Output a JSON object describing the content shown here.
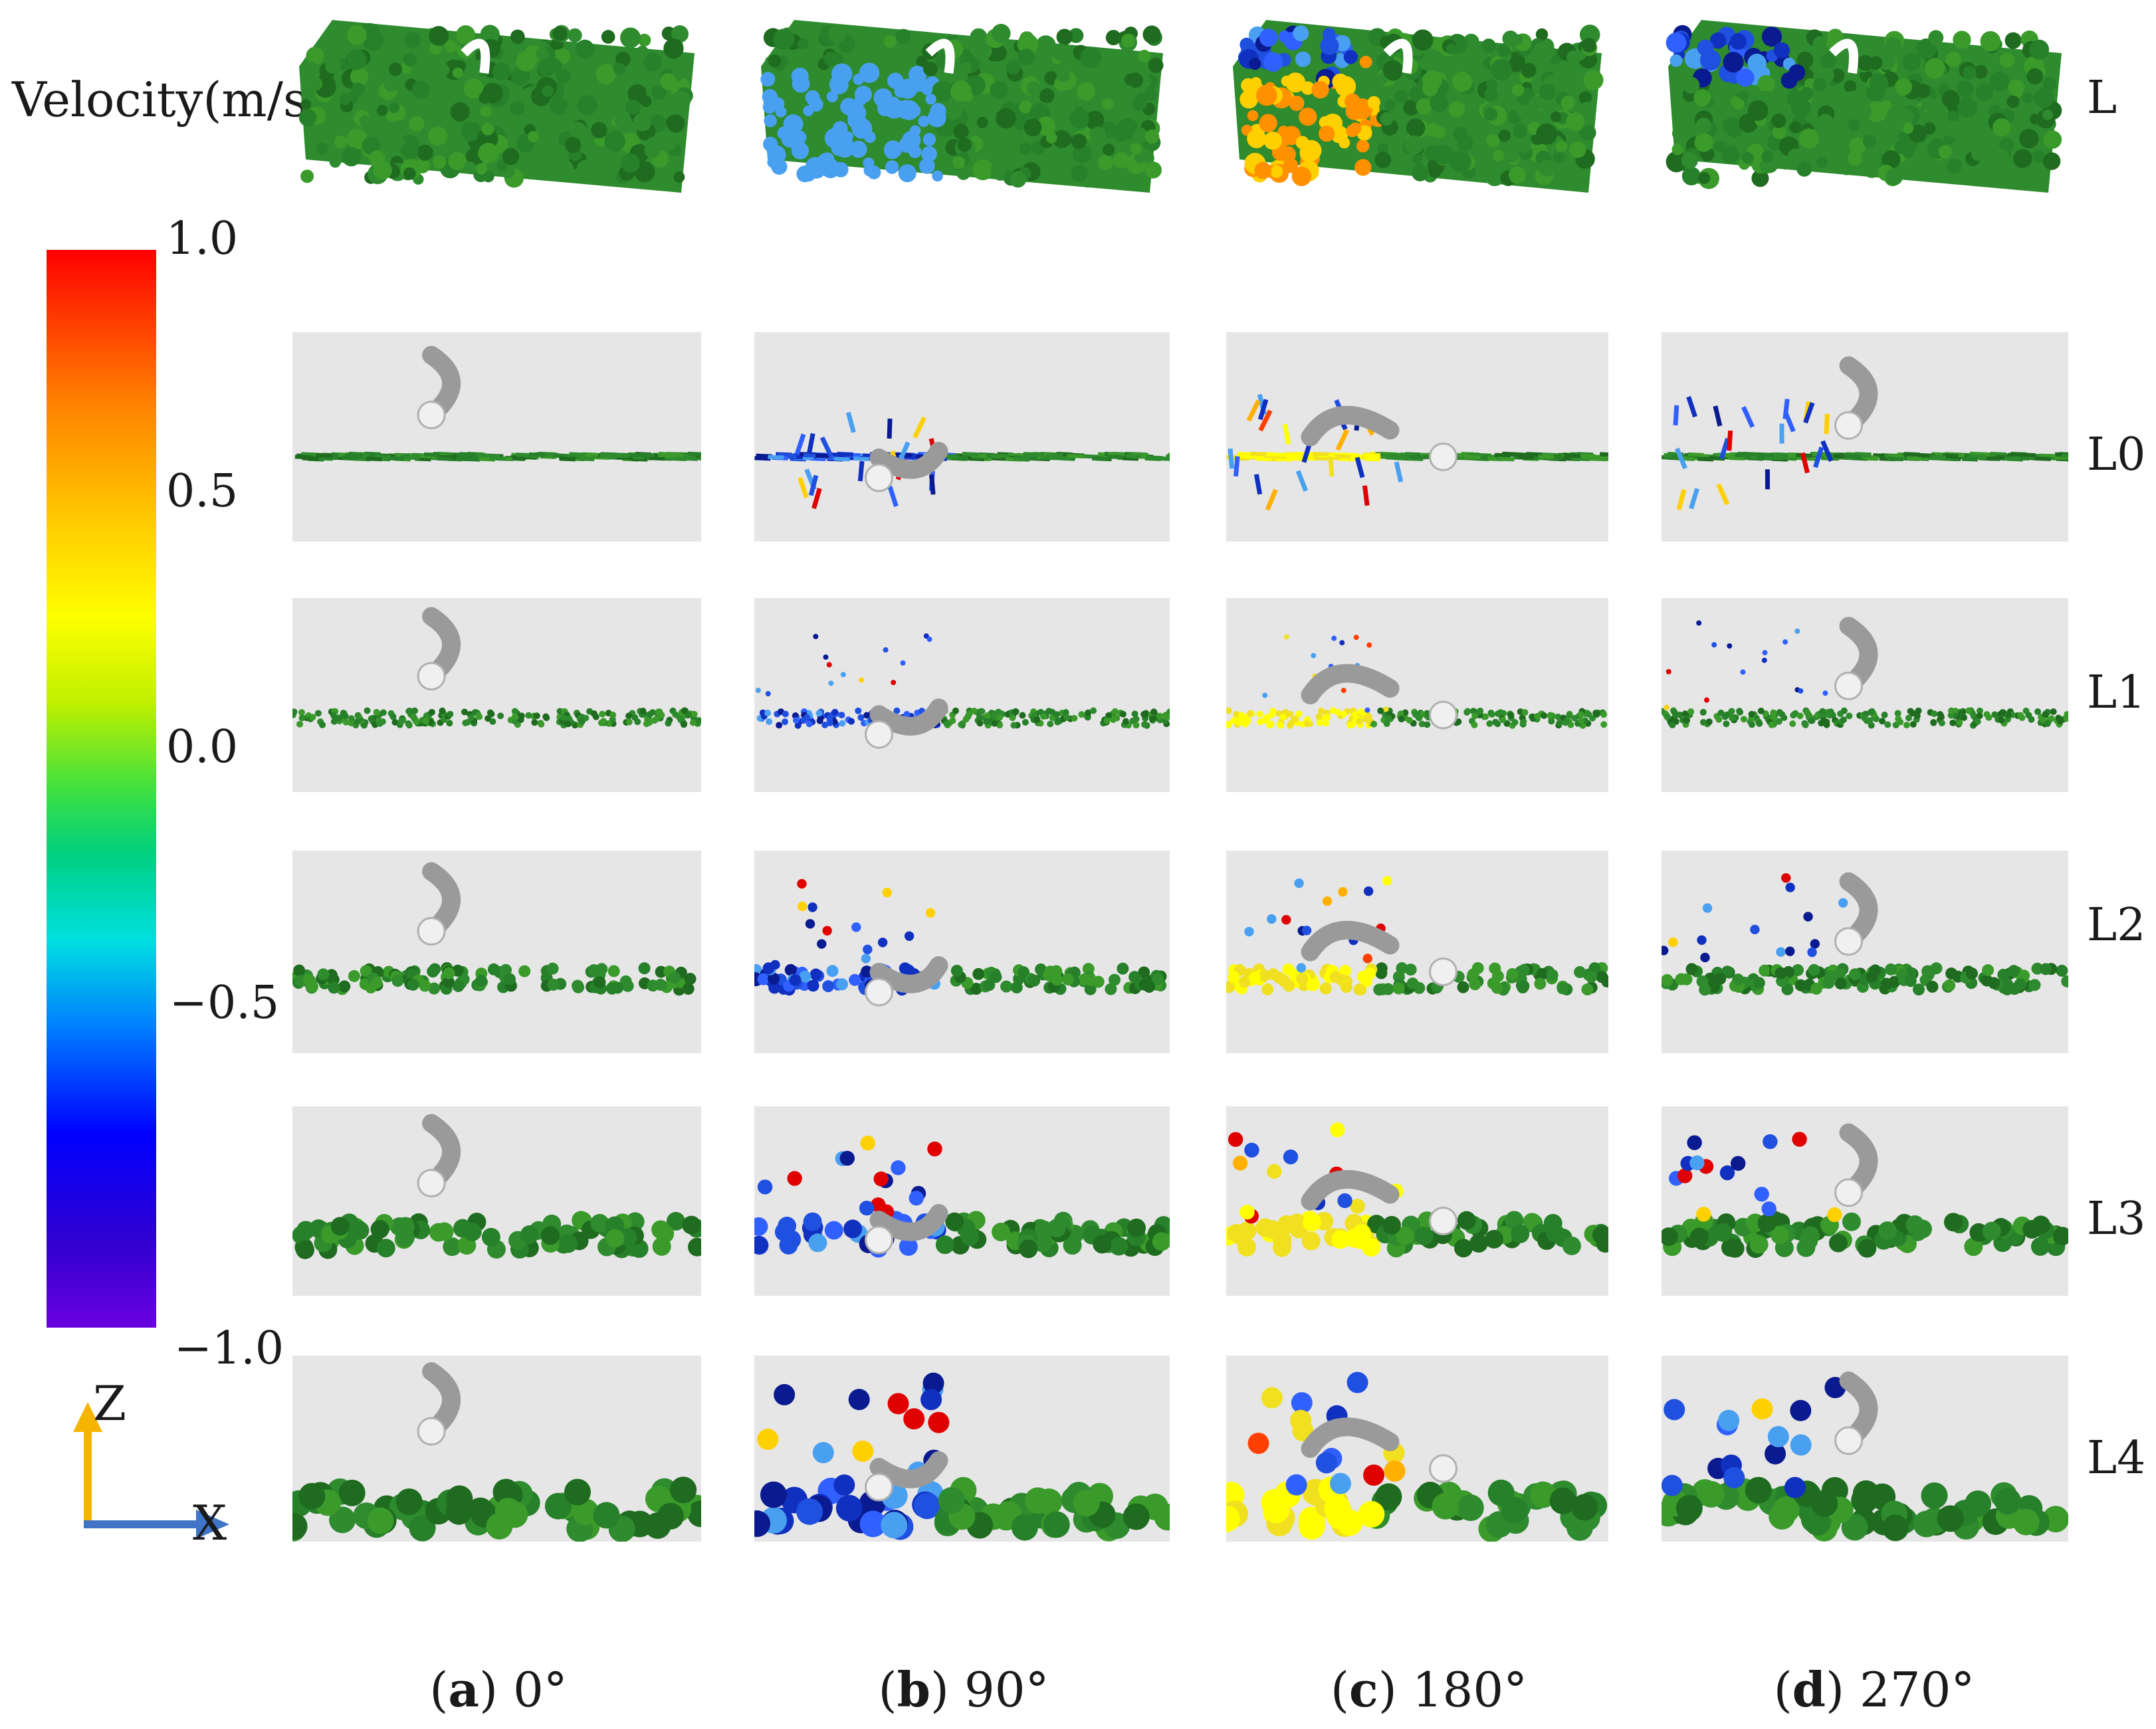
{
  "colorbar": {
    "title": "Velocity(m/s)",
    "ticks": [
      "1.0",
      "0.5",
      "0.0",
      "−0.5",
      "−1.0"
    ],
    "colors": [
      "#ff0000",
      "#ffff00",
      "#40e040",
      "#00e0e0",
      "#0000ff",
      "#6a00e0"
    ]
  },
  "axes": {
    "z_label": "Z",
    "x_label": "X"
  },
  "rows": [
    "L",
    "L0",
    "L1",
    "L2",
    "L3",
    "L4"
  ],
  "columns": [
    {
      "letter": "a",
      "angle": "0°"
    },
    {
      "letter": "b",
      "angle": "90°"
    },
    {
      "letter": "c",
      "angle": "180°"
    },
    {
      "letter": "d",
      "angle": "270°"
    }
  ],
  "colors": {
    "soil": "#2e8b2e",
    "soil_dark": "#1f6b1f",
    "blade": "#9a9a9a",
    "panel_bg": "#e6e6e6"
  }
}
